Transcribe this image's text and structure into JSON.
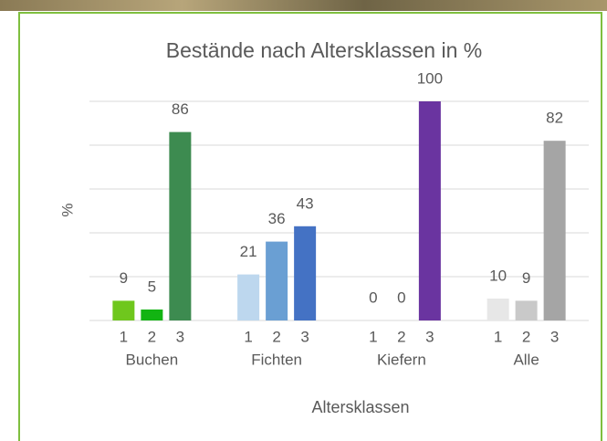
{
  "chart_data": {
    "type": "bar",
    "title": "Bestände nach Altersklassen in %",
    "y_label": "%",
    "x_label": "Altersklassen",
    "subcategories": [
      "1",
      "2",
      "3"
    ],
    "groups": [
      {
        "name": "Buchen",
        "colors": [
          "#6fc71d",
          "#12b412",
          "#3d8b50"
        ],
        "values": [
          9,
          5,
          86
        ]
      },
      {
        "name": "Fichten",
        "colors": [
          "#bdd7ee",
          "#6a9fd3",
          "#4472c4"
        ],
        "values": [
          21,
          36,
          43
        ]
      },
      {
        "name": "Kiefern",
        "colors": [
          "#b4a7d6",
          "#8e7cc3",
          "#6a34a0"
        ],
        "values": [
          0,
          0,
          100
        ]
      },
      {
        "name": "Alle",
        "colors": [
          "#e7e7e7",
          "#c9c9c9",
          "#a5a5a5"
        ],
        "values": [
          10,
          9,
          82
        ]
      }
    ],
    "ylim": [
      0,
      100
    ],
    "yticks": [
      0,
      20,
      40,
      60,
      80,
      100
    ],
    "grid": true
  }
}
